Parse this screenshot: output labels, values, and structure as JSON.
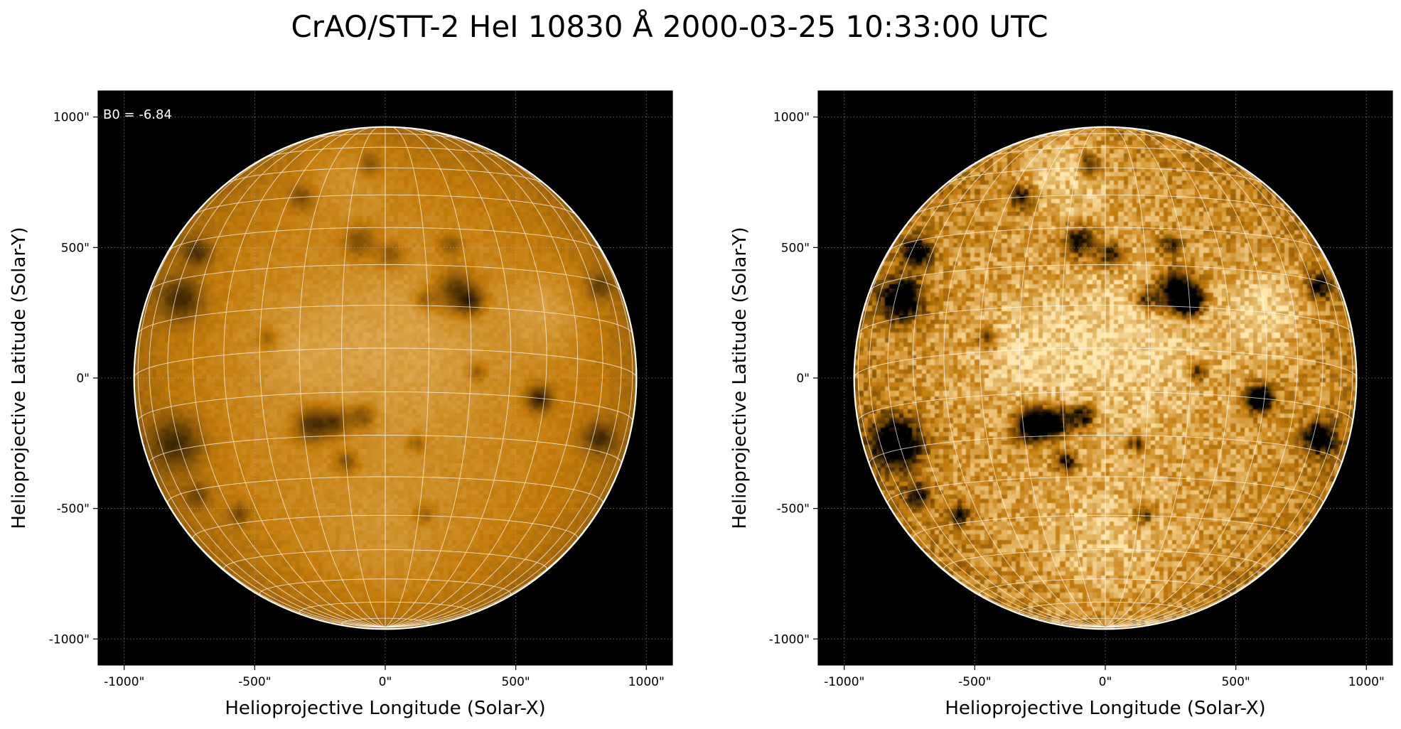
{
  "title": "CrAO/STT-2 HeI 10830 Å 2000-03-25 10:33:00 UTC",
  "annotation": "B0 = -6.84",
  "b0_deg": -6.84,
  "solar_radius_arcsec": 962,
  "colormap": {
    "low": "#000000",
    "mid": "#c47c0c",
    "high": "#ffe8b0"
  },
  "panels": [
    {
      "id": "left",
      "contrast": "normal",
      "xlabel": "Helioprojective Longitude (Solar-X)",
      "ylabel": "Helioprojective Latitude (Solar-Y)",
      "xlim": [
        -1100,
        1100
      ],
      "ylim": [
        -1100,
        1100
      ],
      "xticks": [
        {
          "v": -1000,
          "label": "-1000\""
        },
        {
          "v": -500,
          "label": "-500\""
        },
        {
          "v": 0,
          "label": "0\""
        },
        {
          "v": 500,
          "label": "500\""
        },
        {
          "v": 1000,
          "label": "1000\""
        }
      ],
      "yticks": [
        {
          "v": 1000,
          "label": "1000\""
        },
        {
          "v": 500,
          "label": "500\""
        },
        {
          "v": 0,
          "label": "0\""
        },
        {
          "v": -500,
          "label": "-500\""
        },
        {
          "v": -1000,
          "label": "-1000\""
        }
      ]
    },
    {
      "id": "right",
      "contrast": "enhanced",
      "xlabel": "Helioprojective Longitude (Solar-X)",
      "ylabel": "Helioprojective Latitude (Solar-Y)",
      "xlim": [
        -1100,
        1100
      ],
      "ylim": [
        -1100,
        1100
      ],
      "xticks": [
        {
          "v": -1000,
          "label": "-1000\""
        },
        {
          "v": -500,
          "label": "-500\""
        },
        {
          "v": 0,
          "label": "0\""
        },
        {
          "v": 500,
          "label": "500\""
        },
        {
          "v": 1000,
          "label": "1000\""
        }
      ],
      "yticks": [
        {
          "v": 1000,
          "label": "1000\""
        },
        {
          "v": 500,
          "label": "500\""
        },
        {
          "v": 0,
          "label": "0\""
        },
        {
          "v": -500,
          "label": "-500\""
        },
        {
          "v": -1000,
          "label": "-1000\""
        }
      ]
    }
  ],
  "dark_features": [
    {
      "x": 270,
      "y": 330,
      "r": 90,
      "strength": 0.85
    },
    {
      "x": 330,
      "y": 290,
      "r": 55,
      "strength": 0.7
    },
    {
      "x": -280,
      "y": -180,
      "r": 75,
      "strength": 0.9
    },
    {
      "x": -190,
      "y": -170,
      "r": 60,
      "strength": 0.75
    },
    {
      "x": -90,
      "y": -150,
      "r": 55,
      "strength": 0.6
    },
    {
      "x": -150,
      "y": -320,
      "r": 50,
      "strength": 0.55
    },
    {
      "x": 590,
      "y": -80,
      "r": 55,
      "strength": 1.0
    },
    {
      "x": -780,
      "y": 300,
      "r": 90,
      "strength": 0.8
    },
    {
      "x": -720,
      "y": 480,
      "r": 60,
      "strength": 0.7
    },
    {
      "x": -800,
      "y": -250,
      "r": 110,
      "strength": 0.8
    },
    {
      "x": -720,
      "y": -450,
      "r": 55,
      "strength": 0.5
    },
    {
      "x": -560,
      "y": -520,
      "r": 45,
      "strength": 0.5
    },
    {
      "x": -100,
      "y": 520,
      "r": 70,
      "strength": 0.55
    },
    {
      "x": 20,
      "y": 470,
      "r": 55,
      "strength": 0.5
    },
    {
      "x": 150,
      "y": 300,
      "r": 45,
      "strength": 0.45
    },
    {
      "x": 250,
      "y": 510,
      "r": 50,
      "strength": 0.45
    },
    {
      "x": -320,
      "y": 690,
      "r": 50,
      "strength": 0.55
    },
    {
      "x": -60,
      "y": 820,
      "r": 45,
      "strength": 0.5
    },
    {
      "x": 820,
      "y": -230,
      "r": 70,
      "strength": 0.75
    },
    {
      "x": 820,
      "y": 350,
      "r": 55,
      "strength": 0.55
    },
    {
      "x": 350,
      "y": 20,
      "r": 40,
      "strength": 0.45
    },
    {
      "x": -450,
      "y": 150,
      "r": 45,
      "strength": 0.4
    },
    {
      "x": 150,
      "y": -520,
      "r": 45,
      "strength": 0.4
    },
    {
      "x": 120,
      "y": -250,
      "r": 40,
      "strength": 0.4
    }
  ],
  "bright_features": [
    {
      "x": 620,
      "y": 250,
      "r": 150,
      "strength": 0.5
    },
    {
      "x": -150,
      "y": 800,
      "r": 180,
      "strength": 0.4
    },
    {
      "x": 100,
      "y": 150,
      "r": 280,
      "strength": 0.35
    },
    {
      "x": -300,
      "y": 100,
      "r": 200,
      "strength": 0.3
    },
    {
      "x": 0,
      "y": -650,
      "r": 250,
      "strength": 0.3
    }
  ]
}
